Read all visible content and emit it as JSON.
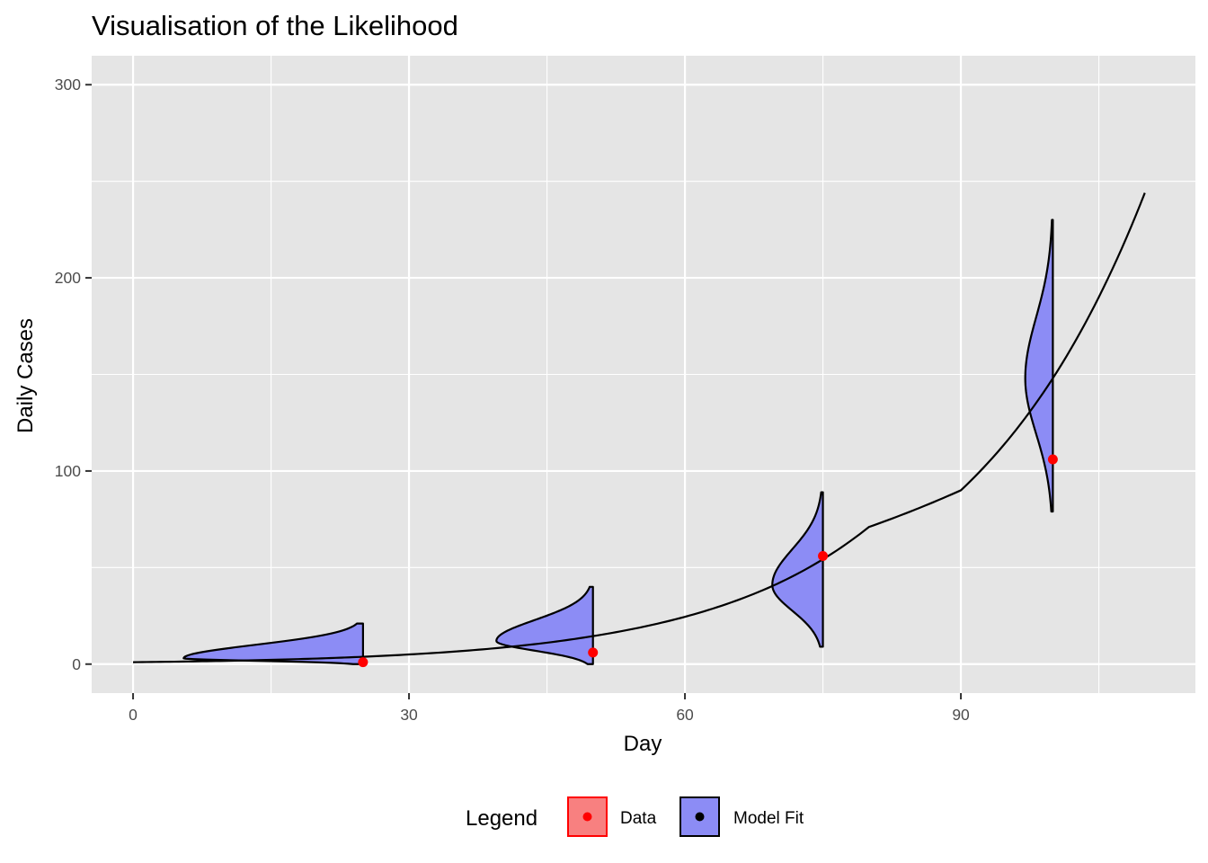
{
  "chart_data": {
    "type": "line",
    "title": "Visualisation of the Likelihood",
    "xlabel": "Day",
    "ylabel": "Daily Cases",
    "xlim": [
      -4.5,
      115.5
    ],
    "ylim": [
      -15,
      315
    ],
    "x_ticks": [
      0,
      30,
      60,
      90
    ],
    "y_ticks": [
      0,
      100,
      200,
      300
    ],
    "grid": true,
    "legend_position": "bottom",
    "legend": {
      "title": "Legend",
      "entries": [
        "Data",
        "Model Fit"
      ]
    },
    "series": [
      {
        "name": "Model Fit",
        "kind": "curve",
        "x": [
          0,
          10,
          20,
          30,
          40,
          50,
          60,
          70,
          80,
          90,
          100,
          110
        ],
        "y": [
          1,
          1.7,
          2.9,
          5,
          8.5,
          14.5,
          24.5,
          41.5,
          71,
          90,
          148,
          244
        ]
      },
      {
        "name": "Data",
        "kind": "points",
        "x": [
          25,
          50,
          75,
          100
        ],
        "y": [
          1,
          6,
          56,
          106
        ]
      }
    ],
    "likelihood_distributions": [
      {
        "day": 25,
        "y_range": [
          0,
          21
        ],
        "peak_y": 3,
        "peak_width_days": 19.5
      },
      {
        "day": 50,
        "y_range": [
          0,
          40
        ],
        "peak_y": 12,
        "peak_width_days": 10.5
      },
      {
        "day": 75,
        "y_range": [
          9,
          89
        ],
        "peak_y": 41,
        "peak_width_days": 5.5
      },
      {
        "day": 100,
        "y_range": [
          79,
          230
        ],
        "peak_y": 148,
        "peak_width_days": 3
      }
    ],
    "colors": {
      "panel": "#e5e5e5",
      "grid": "#ffffff",
      "data_point": "#ff0000",
      "density_fill": "#8c8cf5",
      "line": "#000000",
      "legend_data_fill": "#f88080"
    }
  }
}
